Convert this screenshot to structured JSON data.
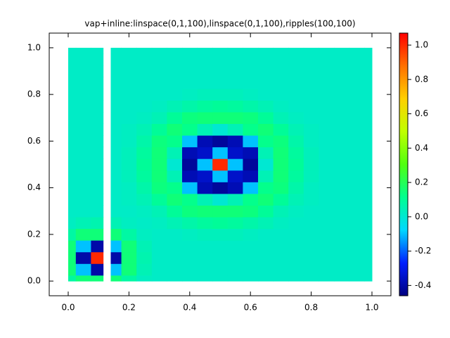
{
  "chart_data": {
    "type": "heatmap",
    "title": "vap+inline:linspace(0,1,100),linspace(0,1,100),ripples(100,100)",
    "x": [
      0,
      0.05,
      0.1,
      0.13,
      0.15,
      0.2,
      0.25,
      0.3,
      0.35,
      0.4,
      0.45,
      0.5,
      0.55,
      0.6,
      0.65,
      0.7,
      0.75,
      0.8,
      0.85,
      0.9,
      0.95,
      1.0
    ],
    "y": [
      0,
      0.05,
      0.1,
      0.15,
      0.2,
      0.25,
      0.3,
      0.35,
      0.4,
      0.45,
      0.5,
      0.55,
      0.6,
      0.65,
      0.7,
      0.75,
      0.8,
      0.85,
      0.9,
      0.95,
      1.0
    ],
    "z": [
      [
        0.08,
        0.15,
        0.15,
        null,
        0.15,
        0.08,
        0.03,
        0.02,
        0.02,
        0.02,
        0.02,
        0.02,
        0.02,
        0.02,
        0.02,
        0.02,
        0.02,
        0.02,
        0.02,
        0.02,
        0.02,
        0.02
      ],
      [
        0.15,
        -0.1,
        -0.4,
        null,
        -0.1,
        0.15,
        0.05,
        0.02,
        0.02,
        0.02,
        0.02,
        0.02,
        0.02,
        0.02,
        0.02,
        0.02,
        0.02,
        0.02,
        0.02,
        0.02,
        0.02,
        0.02
      ],
      [
        0.15,
        -0.4,
        1.0,
        null,
        -0.4,
        0.15,
        0.06,
        0.02,
        0.02,
        0.02,
        0.02,
        0.02,
        0.02,
        0.02,
        0.02,
        0.02,
        0.02,
        0.02,
        0.02,
        0.02,
        0.02,
        0.02
      ],
      [
        0.15,
        -0.1,
        -0.4,
        null,
        -0.1,
        0.15,
        0.05,
        0.02,
        0.02,
        0.02,
        0.02,
        0.02,
        0.02,
        0.02,
        0.02,
        0.02,
        0.02,
        0.02,
        0.02,
        0.02,
        0.02,
        0.02
      ],
      [
        0.08,
        0.15,
        0.15,
        null,
        0.15,
        0.08,
        0.03,
        0.02,
        0.02,
        0.03,
        0.04,
        0.04,
        0.04,
        0.03,
        0.02,
        0.02,
        0.02,
        0.02,
        0.02,
        0.02,
        0.02,
        0.02
      ],
      [
        0.03,
        0.05,
        0.06,
        null,
        0.05,
        0.03,
        0.02,
        0.03,
        0.05,
        0.07,
        0.09,
        0.1,
        0.09,
        0.07,
        0.05,
        0.03,
        0.02,
        0.02,
        0.02,
        0.02,
        0.02,
        0.02
      ],
      [
        0.02,
        0.02,
        0.02,
        null,
        0.02,
        0.02,
        0.03,
        0.05,
        0.1,
        0.14,
        0.15,
        0.15,
        0.15,
        0.14,
        0.1,
        0.05,
        0.03,
        0.02,
        0.02,
        0.02,
        0.02,
        0.02
      ],
      [
        0.02,
        0.02,
        0.02,
        null,
        0.02,
        0.03,
        0.05,
        0.1,
        0.15,
        0.12,
        0.05,
        0.0,
        0.05,
        0.12,
        0.15,
        0.1,
        0.05,
        0.03,
        0.02,
        0.02,
        0.02,
        0.02
      ],
      [
        0.02,
        0.02,
        0.02,
        null,
        0.02,
        0.03,
        0.07,
        0.14,
        0.12,
        -0.1,
        -0.38,
        -0.42,
        -0.38,
        -0.1,
        0.12,
        0.14,
        0.07,
        0.03,
        0.02,
        0.02,
        0.02,
        0.02
      ],
      [
        0.02,
        0.02,
        0.02,
        null,
        0.02,
        0.04,
        0.09,
        0.15,
        0.05,
        -0.38,
        -0.35,
        -0.1,
        -0.35,
        -0.38,
        0.05,
        0.15,
        0.09,
        0.04,
        0.02,
        0.02,
        0.02,
        0.02
      ],
      [
        0.02,
        0.02,
        0.02,
        null,
        0.02,
        0.04,
        0.1,
        0.15,
        0.0,
        -0.42,
        -0.1,
        1.0,
        -0.1,
        -0.42,
        0.0,
        0.15,
        0.1,
        0.04,
        0.02,
        0.02,
        0.02,
        0.02
      ],
      [
        0.02,
        0.02,
        0.02,
        null,
        0.02,
        0.04,
        0.09,
        0.15,
        0.05,
        -0.38,
        -0.35,
        -0.1,
        -0.35,
        -0.38,
        0.05,
        0.15,
        0.09,
        0.04,
        0.02,
        0.02,
        0.02,
        0.02
      ],
      [
        0.02,
        0.02,
        0.02,
        null,
        0.02,
        0.03,
        0.07,
        0.14,
        0.12,
        -0.1,
        -0.38,
        -0.42,
        -0.38,
        -0.1,
        0.12,
        0.14,
        0.07,
        0.03,
        0.02,
        0.02,
        0.02,
        0.02
      ],
      [
        0.02,
        0.02,
        0.02,
        null,
        0.02,
        0.03,
        0.05,
        0.1,
        0.15,
        0.12,
        0.05,
        0.0,
        0.05,
        0.12,
        0.15,
        0.1,
        0.05,
        0.03,
        0.02,
        0.02,
        0.02,
        0.02
      ],
      [
        0.02,
        0.02,
        0.02,
        null,
        0.02,
        0.02,
        0.03,
        0.05,
        0.1,
        0.14,
        0.15,
        0.15,
        0.15,
        0.14,
        0.1,
        0.05,
        0.03,
        0.02,
        0.02,
        0.02,
        0.02,
        0.02
      ],
      [
        0.02,
        0.02,
        0.02,
        null,
        0.02,
        0.02,
        0.02,
        0.03,
        0.05,
        0.07,
        0.09,
        0.1,
        0.09,
        0.07,
        0.05,
        0.03,
        0.02,
        0.02,
        0.02,
        0.02,
        0.02,
        0.02
      ],
      [
        0.02,
        0.02,
        0.02,
        null,
        0.02,
        0.02,
        0.02,
        0.02,
        0.02,
        0.03,
        0.04,
        0.04,
        0.04,
        0.03,
        0.02,
        0.02,
        0.02,
        0.02,
        0.02,
        0.02,
        0.02,
        0.02
      ],
      [
        0.02,
        0.02,
        0.02,
        null,
        0.02,
        0.02,
        0.02,
        0.02,
        0.02,
        0.02,
        0.02,
        0.02,
        0.02,
        0.02,
        0.02,
        0.02,
        0.02,
        0.02,
        0.02,
        0.02,
        0.02,
        0.02
      ],
      [
        0.02,
        0.02,
        0.02,
        null,
        0.02,
        0.02,
        0.02,
        0.02,
        0.02,
        0.02,
        0.02,
        0.02,
        0.02,
        0.02,
        0.02,
        0.02,
        0.02,
        0.02,
        0.02,
        0.02,
        0.02,
        0.02
      ],
      [
        0.02,
        0.02,
        0.02,
        null,
        0.02,
        0.02,
        0.02,
        0.02,
        0.02,
        0.02,
        0.02,
        0.02,
        0.02,
        0.02,
        0.02,
        0.02,
        0.02,
        0.02,
        0.02,
        0.02,
        0.02,
        0.02
      ],
      [
        0.02,
        0.02,
        0.02,
        null,
        0.02,
        0.02,
        0.02,
        0.02,
        0.02,
        0.02,
        0.02,
        0.02,
        0.02,
        0.02,
        0.02,
        0.02,
        0.02,
        0.02,
        0.02,
        0.02,
        0.02,
        0.02
      ]
    ],
    "xlim": [
      -0.0625,
      1.0625
    ],
    "ylim": [
      -0.063,
      1.063
    ],
    "zlim": [
      -0.46,
      1.07
    ],
    "xticks": [
      {
        "value": 0,
        "label": "0.0"
      },
      0.2,
      0.4,
      0.6,
      0.8,
      {
        "value": 1,
        "label": "1.0"
      }
    ],
    "yticks": [
      {
        "value": 0,
        "label": "0.0"
      },
      0.2,
      0.4,
      0.6,
      0.8,
      {
        "value": 1,
        "label": "1.0"
      }
    ],
    "zticks": [
      -0.4,
      -0.2,
      {
        "value": 0,
        "label": "0.0"
      },
      0.2,
      0.4,
      0.6,
      0.8,
      {
        "value": 1,
        "label": "1.0"
      }
    ],
    "colormap": [
      "#000080",
      "#0020ff",
      "#00d8ff",
      "#00ff90",
      "#50ff10",
      "#c0ff00",
      "#ffd000",
      "#ff7000",
      "#ff0000"
    ]
  }
}
